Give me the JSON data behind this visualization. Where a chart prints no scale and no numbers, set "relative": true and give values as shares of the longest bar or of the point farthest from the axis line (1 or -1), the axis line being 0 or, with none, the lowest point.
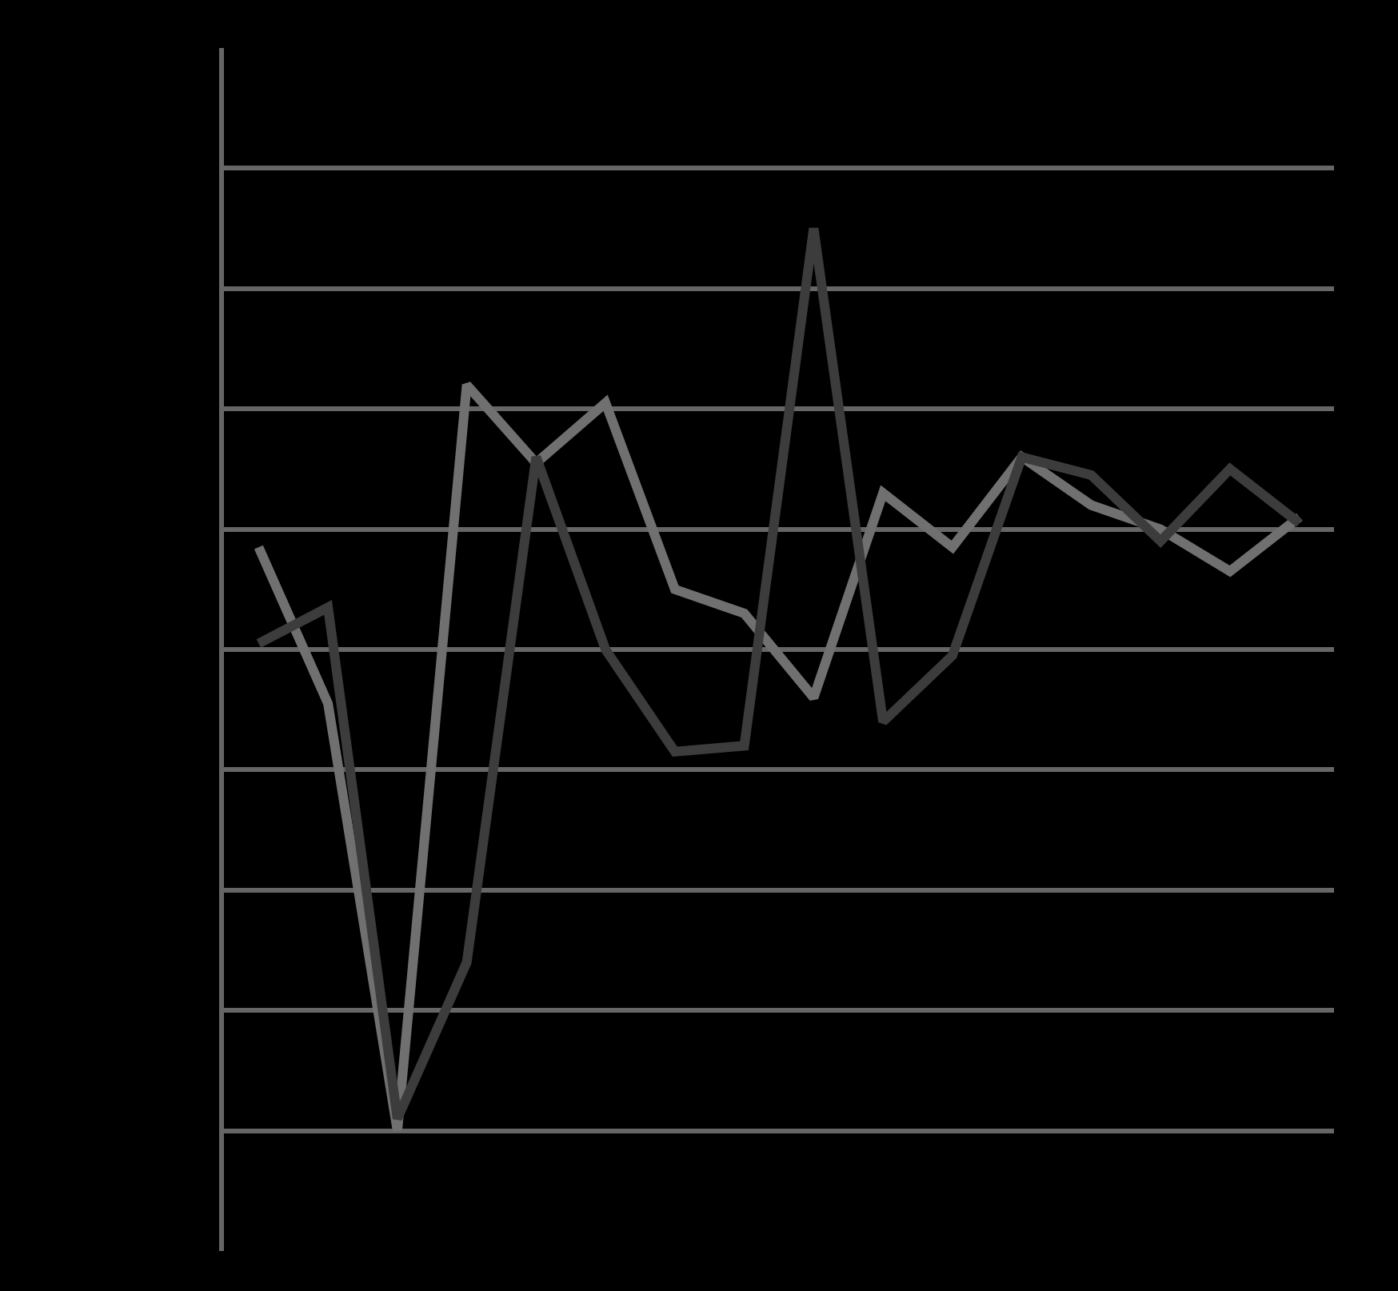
{
  "chart_data": {
    "type": "line",
    "relative": true,
    "categories": [
      null,
      null,
      null,
      null,
      null,
      null,
      null,
      null,
      null,
      null,
      null,
      null,
      null,
      null,
      null,
      null
    ],
    "series": [
      {
        "color": "#707070",
        "values": [
          -0.03,
          -0.29,
          -1,
          0.24,
          0.11,
          0.21,
          -0.1,
          -0.14,
          -0.28,
          0.06,
          -0.03,
          0.12,
          0.04,
          0.0,
          -0.07,
          0.02
        ]
      },
      {
        "color": "#3c3c3c",
        "values": [
          -0.19,
          -0.13,
          -0.98,
          -0.72,
          0.12,
          -0.2,
          -0.37,
          -0.36,
          0.5,
          -0.32,
          -0.21,
          0.12,
          0.09,
          -0.02,
          0.1,
          0.01
        ]
      }
    ],
    "grid": "y",
    "tick_labels": false,
    "legend": false,
    "marker": "none",
    "line_style": "solid"
  }
}
